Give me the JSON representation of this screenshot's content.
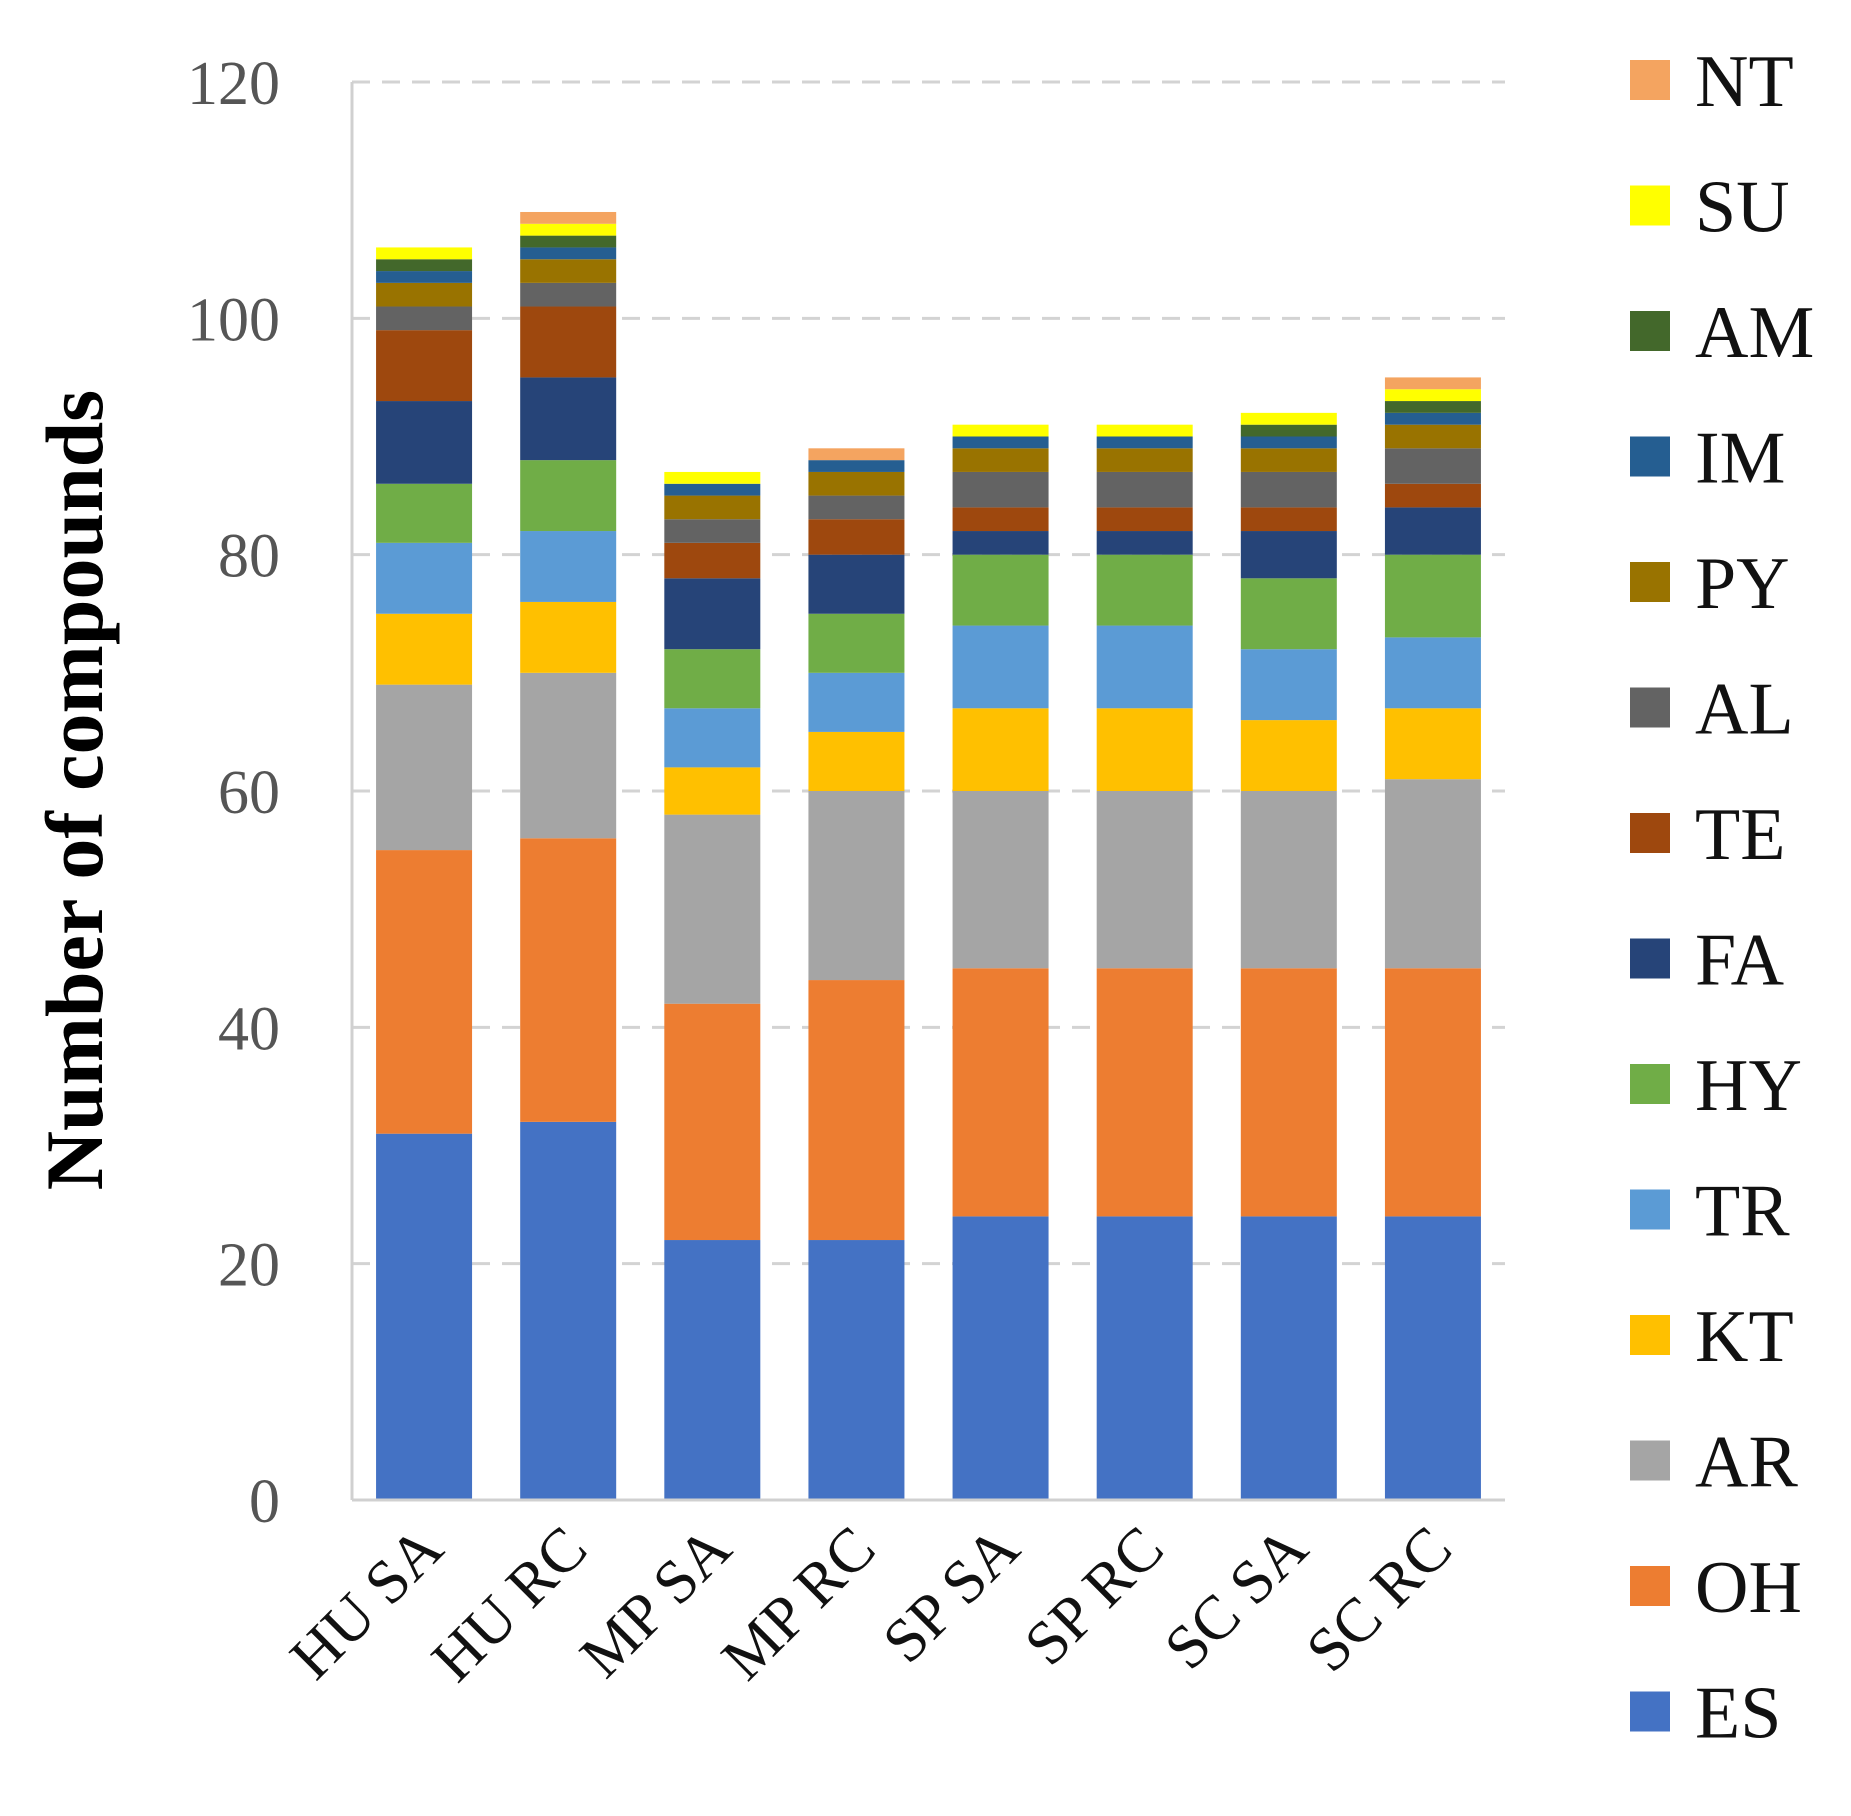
{
  "chart_data": {
    "type": "bar",
    "stacked": true,
    "title": "",
    "xlabel": "",
    "ylabel": "Number of compounds",
    "ylim": [
      0,
      120
    ],
    "yticks": [
      0,
      20,
      40,
      60,
      80,
      100,
      120
    ],
    "grid": "horizontal dashed",
    "legend_position": "right",
    "categories": [
      "HU SA",
      "HU RC",
      "MP SA",
      "MP RC",
      "SP SA",
      "SP RC",
      "SC SA",
      "SC RC"
    ],
    "series": [
      {
        "name": "ES",
        "color": "#4472C4",
        "values": [
          31,
          32,
          22,
          22,
          24,
          24,
          24,
          24
        ]
      },
      {
        "name": "OH",
        "color": "#ED7D31",
        "values": [
          24,
          24,
          20,
          22,
          21,
          21,
          21,
          21
        ]
      },
      {
        "name": "AR",
        "color": "#A5A5A5",
        "values": [
          14,
          14,
          16,
          16,
          15,
          15,
          15,
          16
        ]
      },
      {
        "name": "KT",
        "color": "#FFC000",
        "values": [
          6,
          6,
          4,
          5,
          7,
          7,
          6,
          6
        ]
      },
      {
        "name": "TR",
        "color": "#5B9BD5",
        "values": [
          6,
          6,
          5,
          5,
          7,
          7,
          6,
          6
        ]
      },
      {
        "name": "HY",
        "color": "#70AD47",
        "values": [
          5,
          6,
          5,
          5,
          6,
          6,
          6,
          7
        ]
      },
      {
        "name": "FA",
        "color": "#264478",
        "values": [
          7,
          7,
          6,
          5,
          2,
          2,
          4,
          4
        ]
      },
      {
        "name": "TE",
        "color": "#9E480E",
        "values": [
          6,
          6,
          3,
          3,
          2,
          2,
          2,
          2
        ]
      },
      {
        "name": "AL",
        "color": "#636363",
        "values": [
          2,
          2,
          2,
          2,
          3,
          3,
          3,
          3
        ]
      },
      {
        "name": "PY",
        "color": "#997300",
        "values": [
          2,
          2,
          2,
          2,
          2,
          2,
          2,
          2
        ]
      },
      {
        "name": "IM",
        "color": "#255E91",
        "values": [
          1,
          1,
          1,
          1,
          1,
          1,
          1,
          1
        ]
      },
      {
        "name": "AM",
        "color": "#43682B",
        "values": [
          1,
          1,
          0,
          0,
          0,
          0,
          1,
          1
        ]
      },
      {
        "name": "SU",
        "color": "#FFFF00",
        "values": [
          1,
          1,
          1,
          0,
          1,
          1,
          1,
          1
        ]
      },
      {
        "name": "NT",
        "color": "#F4A460",
        "values": [
          0,
          1,
          0,
          1,
          0,
          0,
          0,
          1
        ]
      }
    ]
  }
}
